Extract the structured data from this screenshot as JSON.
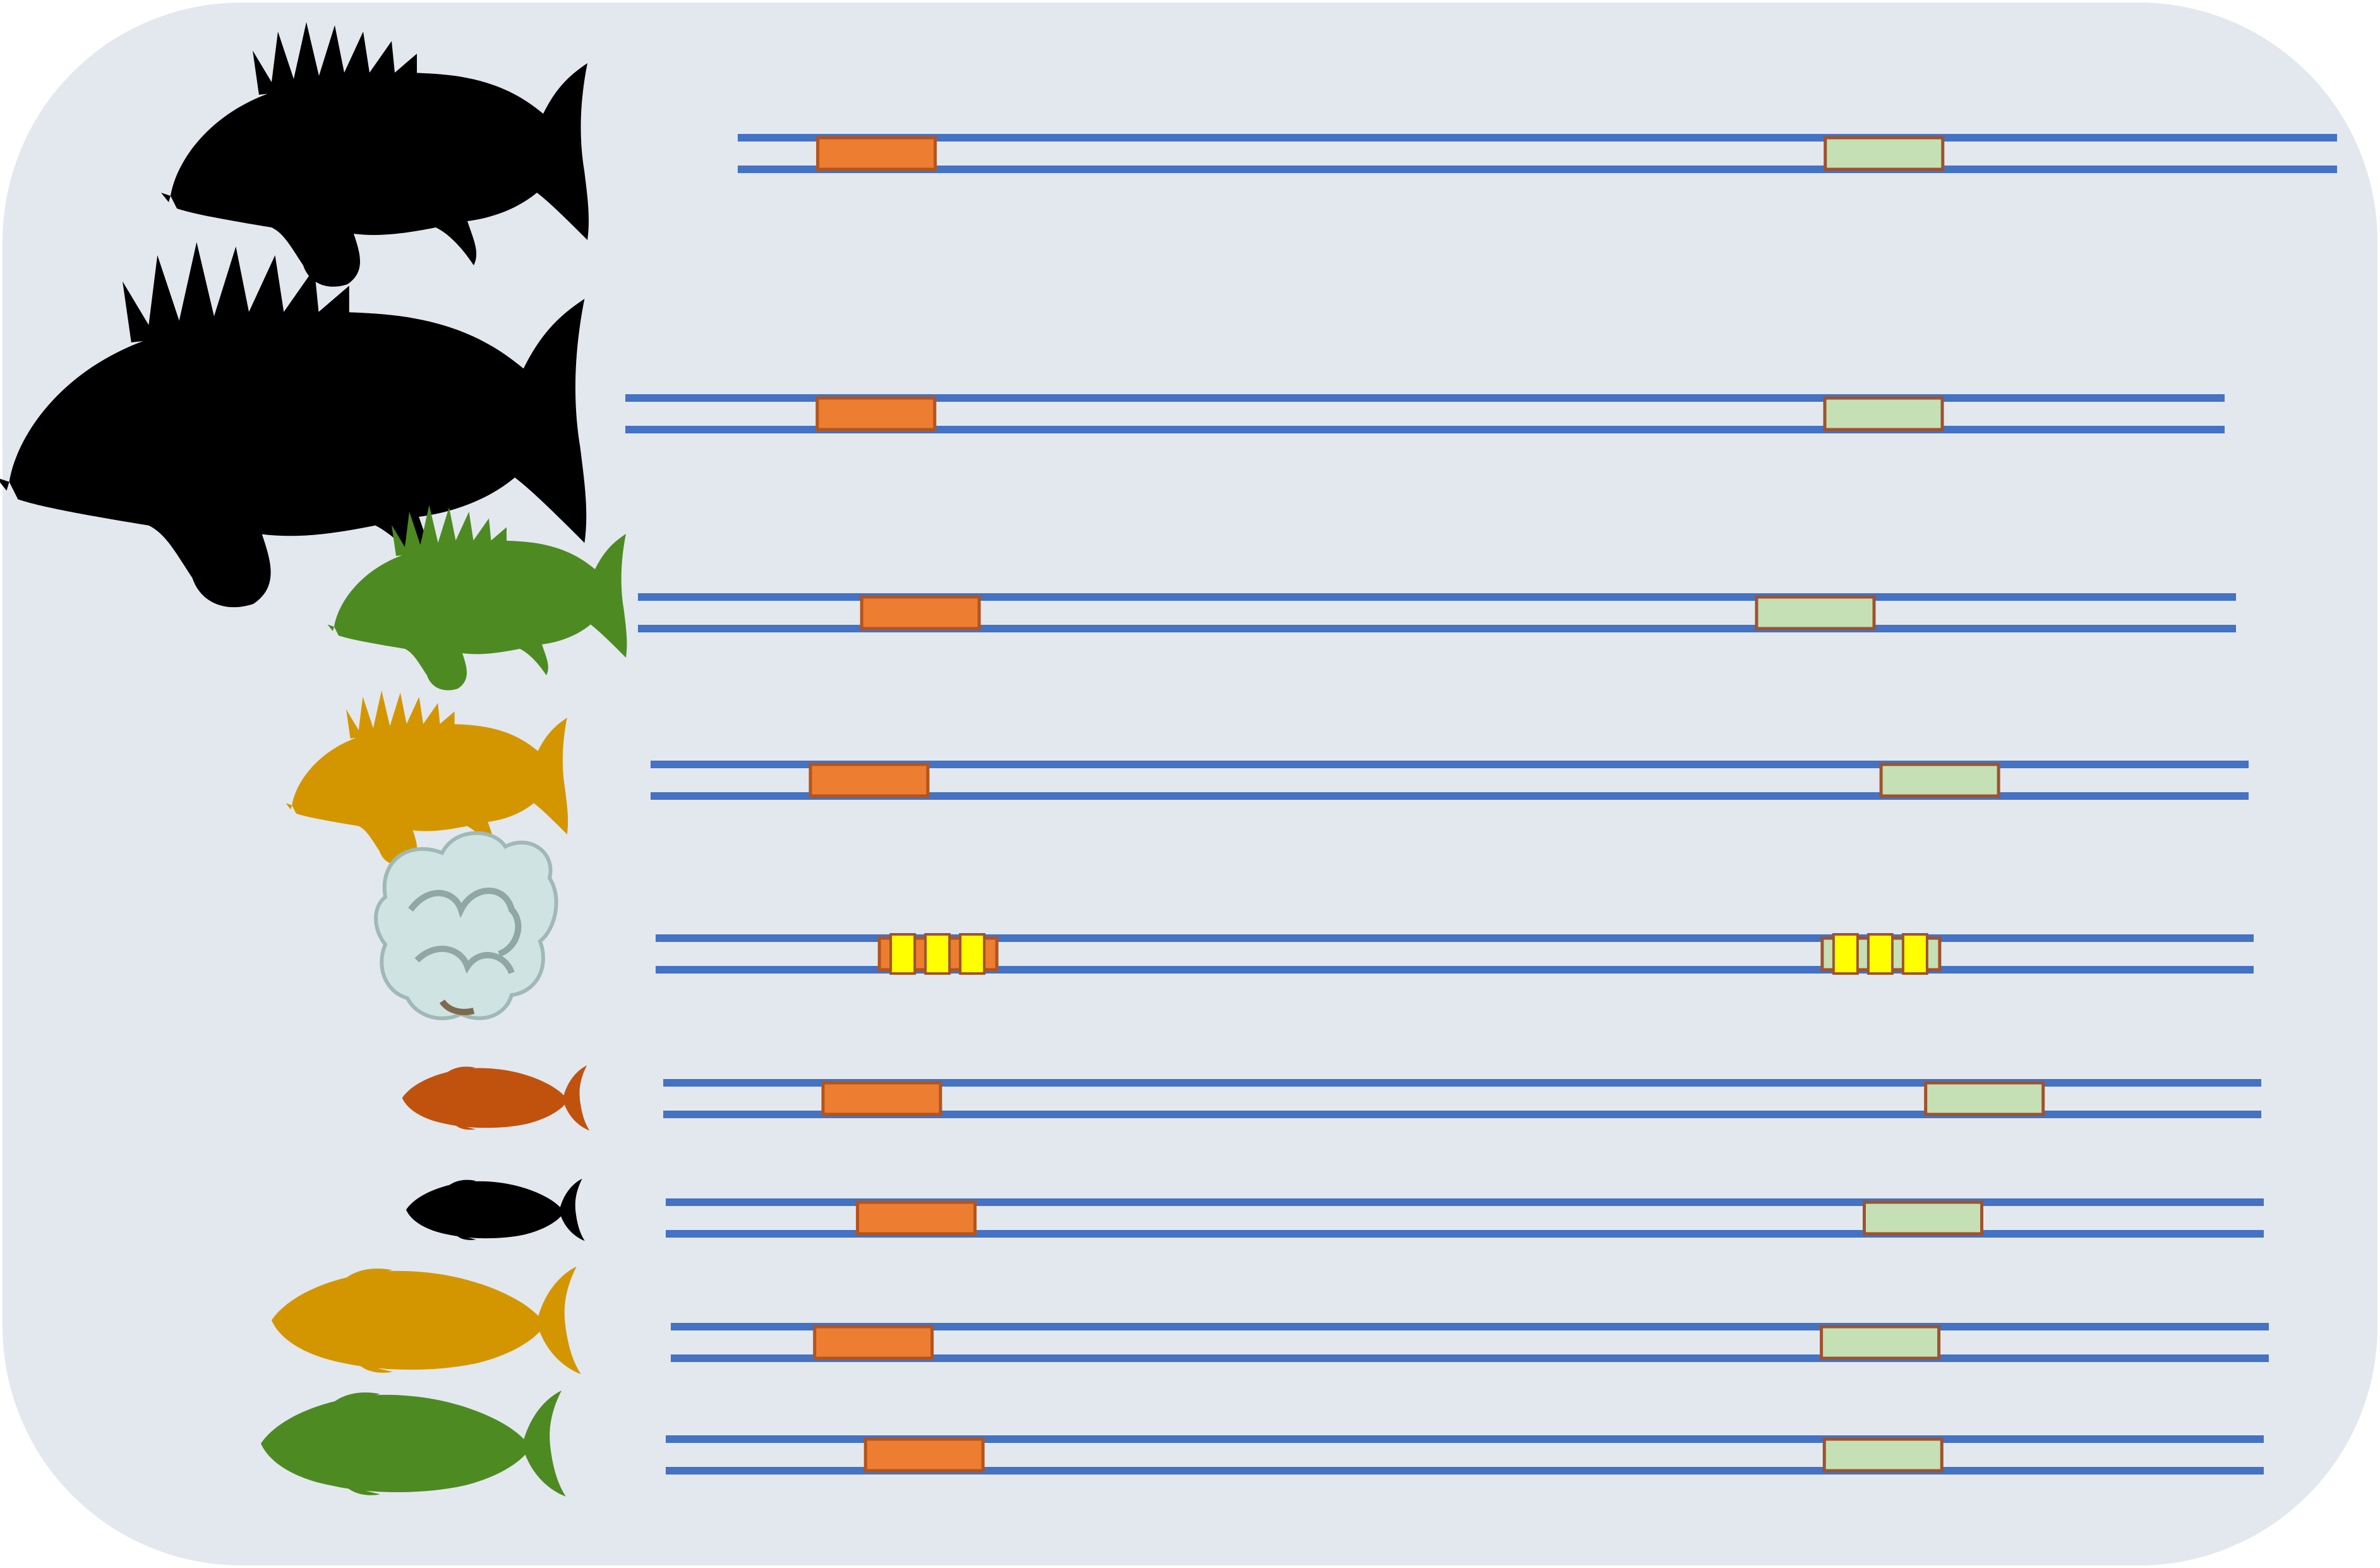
{
  "colors": {
    "panel_background": "#e3e8ef",
    "strand": "#4472c4",
    "orange_box": "#ed7d31",
    "orange_box_border": "#b4541c",
    "green_box": "#c5e0b4",
    "green_box_border": "#a0522d",
    "yellow_segment": "#ffff00"
  },
  "rows": [
    {
      "organism": "rockfish-silhouette",
      "organism_color": "#000000",
      "segments": [
        {
          "kind": "orange",
          "position": 0.05
        },
        {
          "kind": "green",
          "position": 0.68
        }
      ]
    },
    {
      "organism": "rockfish-silhouette",
      "organism_color": "#000000",
      "segments": [
        {
          "kind": "orange",
          "position": 0.12
        },
        {
          "kind": "green",
          "position": 0.75
        }
      ]
    },
    {
      "organism": "rockfish-silhouette",
      "organism_color": "#4e8a22",
      "segments": [
        {
          "kind": "orange",
          "position": 0.14
        },
        {
          "kind": "green",
          "position": 0.7
        }
      ]
    },
    {
      "organism": "rockfish-silhouette",
      "organism_color": "#d49600",
      "segments": [
        {
          "kind": "orange",
          "position": 0.1
        },
        {
          "kind": "green",
          "position": 0.77
        }
      ]
    },
    {
      "organism": "coral",
      "organism_color": "#cfe3e3",
      "segments": [
        {
          "kind": "orange-yellow",
          "position": 0.14
        },
        {
          "kind": "green-yellow",
          "position": 0.73
        }
      ]
    },
    {
      "organism": "surgeonfish-silhouette",
      "organism_color": "#c0520e",
      "segments": [
        {
          "kind": "orange",
          "position": 0.1
        },
        {
          "kind": "green",
          "position": 0.79
        }
      ]
    },
    {
      "organism": "surgeonfish-silhouette",
      "organism_color": "#000000",
      "segments": [
        {
          "kind": "orange",
          "position": 0.12
        },
        {
          "kind": "green",
          "position": 0.75
        }
      ]
    },
    {
      "organism": "surgeonfish-silhouette",
      "organism_color": "#d49600",
      "segments": [
        {
          "kind": "orange",
          "position": 0.09
        },
        {
          "kind": "green",
          "position": 0.72
        }
      ]
    },
    {
      "organism": "surgeonfish-silhouette",
      "organism_color": "#4e8a22",
      "segments": [
        {
          "kind": "orange",
          "position": 0.125
        },
        {
          "kind": "green",
          "position": 0.725
        }
      ]
    }
  ]
}
